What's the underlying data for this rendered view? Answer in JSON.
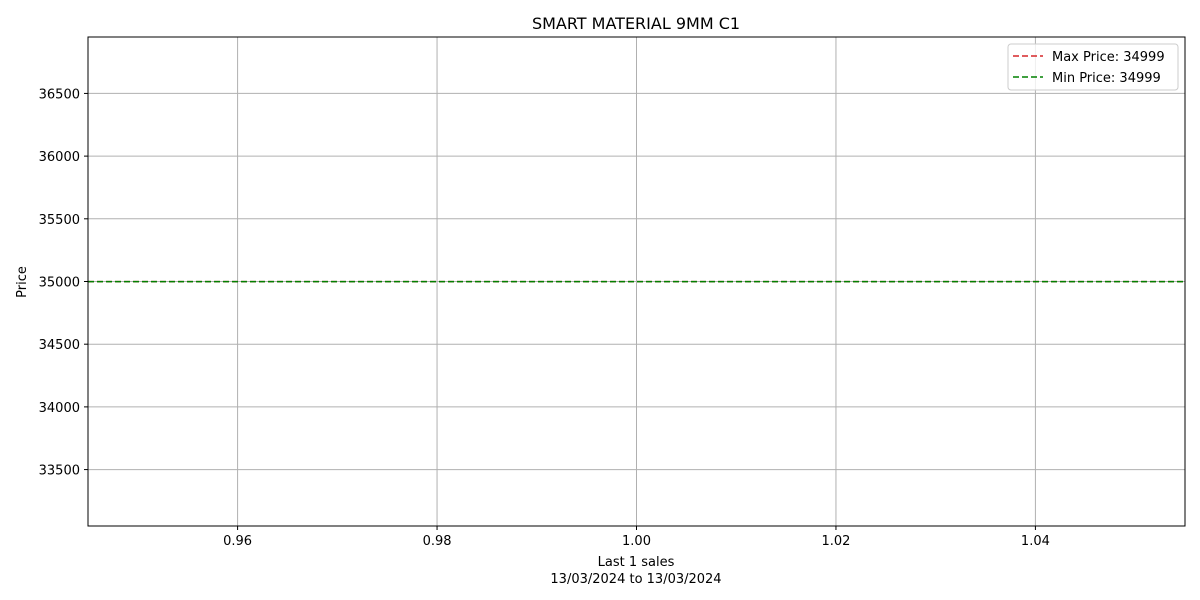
{
  "chart_data": {
    "type": "line",
    "title": "SMART MATERIAL 9MM C1",
    "xlabel": "Last 1 sales",
    "xlabel_sub": "13/03/2024 to 13/03/2024",
    "ylabel": "Price",
    "xlim": [
      0.945,
      1.055
    ],
    "ylim": [
      33050,
      36950
    ],
    "x_ticks": [
      0.96,
      0.98,
      1.0,
      1.02,
      1.04
    ],
    "x_tick_labels": [
      "0.96",
      "0.98",
      "1.00",
      "1.02",
      "1.04"
    ],
    "y_ticks": [
      33500,
      34000,
      34500,
      35000,
      35500,
      36000,
      36500
    ],
    "y_tick_labels": [
      "33500",
      "34000",
      "34500",
      "35000",
      "35500",
      "36000",
      "36500"
    ],
    "grid": true,
    "legend_position": "top-right",
    "series": [
      {
        "name": "Max Price: 34999",
        "type": "hline",
        "value": 34999,
        "color": "#d62728",
        "dash": "dashed"
      },
      {
        "name": "Min Price: 34999",
        "type": "hline",
        "value": 34999,
        "color": "#008000",
        "dash": "dashed"
      }
    ]
  }
}
